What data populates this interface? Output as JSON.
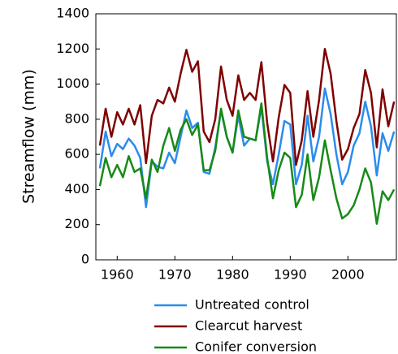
{
  "chart_data": {
    "type": "line",
    "y_label": "Streamflow (mm)",
    "x": [
      1957,
      1958,
      1959,
      1960,
      1961,
      1962,
      1963,
      1964,
      1965,
      1966,
      1967,
      1968,
      1969,
      1970,
      1971,
      1972,
      1973,
      1974,
      1975,
      1976,
      1977,
      1978,
      1979,
      1980,
      1981,
      1982,
      1983,
      1984,
      1985,
      1986,
      1987,
      1988,
      1989,
      1990,
      1991,
      1992,
      1993,
      1994,
      1995,
      1996,
      1997,
      1998,
      1999,
      2000,
      2001,
      2002,
      2003,
      2004,
      2005,
      2006,
      2007,
      2008
    ],
    "series": [
      {
        "name": "Untreated control",
        "color": "#2b8ced",
        "values": [
          520,
          730,
          590,
          660,
          630,
          690,
          650,
          580,
          300,
          560,
          530,
          520,
          610,
          550,
          700,
          850,
          750,
          780,
          500,
          490,
          640,
          850,
          700,
          610,
          820,
          650,
          690,
          680,
          870,
          560,
          430,
          600,
          790,
          770,
          430,
          540,
          820,
          560,
          700,
          975,
          830,
          600,
          430,
          500,
          650,
          720,
          900,
          760,
          480,
          720,
          620,
          730
        ]
      },
      {
        "name": "Clearcut harvest",
        "color": "#800000",
        "values": [
          650,
          860,
          700,
          840,
          770,
          860,
          770,
          880,
          550,
          820,
          910,
          890,
          980,
          900,
          1060,
          1195,
          1070,
          1130,
          730,
          670,
          800,
          1100,
          910,
          820,
          1050,
          910,
          950,
          910,
          1125,
          780,
          560,
          810,
          995,
          950,
          540,
          680,
          960,
          700,
          910,
          1200,
          1060,
          790,
          570,
          630,
          750,
          830,
          1080,
          950,
          640,
          970,
          760,
          900
        ]
      },
      {
        "name": "Conifer conversion",
        "color": "#178a17",
        "values": [
          420,
          580,
          470,
          540,
          470,
          590,
          500,
          520,
          350,
          570,
          500,
          650,
          750,
          620,
          740,
          800,
          710,
          770,
          510,
          510,
          620,
          860,
          700,
          610,
          850,
          700,
          690,
          680,
          890,
          580,
          350,
          510,
          610,
          580,
          300,
          370,
          600,
          340,
          470,
          680,
          510,
          350,
          235,
          260,
          310,
          400,
          520,
          440,
          205,
          390,
          340,
          400
        ]
      }
    ],
    "xlim": [
      1956.3,
      2008.4
    ],
    "xticks": [
      1960,
      1970,
      1980,
      1990,
      2000
    ],
    "ylim": [
      0,
      1400
    ],
    "yticks": [
      0,
      200,
      400,
      600,
      800,
      1000,
      1200,
      1400
    ]
  }
}
